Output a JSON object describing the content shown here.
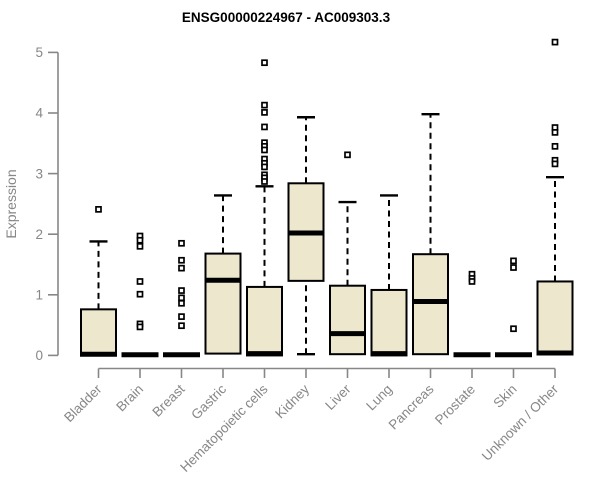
{
  "chart_data": {
    "type": "boxplot",
    "title": "ENSG00000224967 - AC009303.3",
    "ylabel": "Expression",
    "xlabel": "",
    "ylim": [
      0,
      5
    ],
    "yticks": [
      0,
      1,
      2,
      3,
      4,
      5
    ],
    "grid": false,
    "legend": "none",
    "categories": [
      "Bladder",
      "Brain",
      "Breast",
      "Gastric",
      "Hematopoietic cells",
      "Kidney",
      "Liver",
      "Lung",
      "Pancreas",
      "Prostate",
      "Skin",
      "Unknown / Other"
    ],
    "series": [
      {
        "name": "Bladder",
        "q1": 0,
        "median": 0.02,
        "q3": 0.76,
        "whisker_low": 0,
        "whisker_high": 1.88,
        "outliers": [
          2.41
        ]
      },
      {
        "name": "Brain",
        "q1": 0,
        "median": 0.01,
        "q3": 0.02,
        "whisker_low": 0,
        "whisker_high": 0.02,
        "outliers": [
          1.97,
          1.9,
          1.8,
          1.22,
          1.01,
          0.52,
          0.47
        ]
      },
      {
        "name": "Breast",
        "q1": 0,
        "median": 0.01,
        "q3": 0.02,
        "whisker_low": 0,
        "whisker_high": 0.02,
        "outliers": [
          1.85,
          1.57,
          1.44,
          1.07,
          0.95,
          0.86,
          0.64,
          0.49
        ]
      },
      {
        "name": "Gastric",
        "q1": 0.03,
        "median": 1.24,
        "q3": 1.68,
        "whisker_low": 0.03,
        "whisker_high": 2.64,
        "outliers": []
      },
      {
        "name": "Hematopoietic cells",
        "q1": 0,
        "median": 0.03,
        "q3": 1.13,
        "whisker_low": 0,
        "whisker_high": 2.79,
        "outliers": [
          4.83,
          4.13,
          4.01,
          3.77,
          3.51,
          3.45,
          3.39,
          3.24,
          3.17,
          3.11,
          2.98,
          2.93,
          2.87
        ]
      },
      {
        "name": "Kidney",
        "q1": 1.23,
        "median": 2.02,
        "q3": 2.84,
        "whisker_low": 0.02,
        "whisker_high": 3.93,
        "outliers": []
      },
      {
        "name": "Liver",
        "q1": 0.02,
        "median": 0.36,
        "q3": 1.15,
        "whisker_low": 0.02,
        "whisker_high": 2.53,
        "outliers": [
          3.31
        ]
      },
      {
        "name": "Lung",
        "q1": 0,
        "median": 0.03,
        "q3": 1.08,
        "whisker_low": 0,
        "whisker_high": 2.64,
        "outliers": []
      },
      {
        "name": "Pancreas",
        "q1": 0.02,
        "median": 0.89,
        "q3": 1.67,
        "whisker_low": 0.02,
        "whisker_high": 3.98,
        "outliers": []
      },
      {
        "name": "Prostate",
        "q1": 0,
        "median": 0.01,
        "q3": 0.02,
        "whisker_low": 0,
        "whisker_high": 0.02,
        "outliers": [
          1.34,
          1.27,
          1.22
        ]
      },
      {
        "name": "Skin",
        "q1": 0,
        "median": 0.01,
        "q3": 0.02,
        "whisker_low": 0,
        "whisker_high": 0.02,
        "outliers": [
          1.56,
          1.45,
          0.44
        ]
      },
      {
        "name": "Unknown / Other",
        "q1": 0.02,
        "median": 0.04,
        "q3": 1.22,
        "whisker_low": 0.02,
        "whisker_high": 2.94,
        "outliers": [
          5.17,
          3.76,
          3.68,
          3.45,
          3.22,
          3.16
        ]
      }
    ],
    "style": {
      "background": "#ffffff",
      "box_fill": "#EDE7CE",
      "box_stroke": "#000000",
      "median_color": "#000000",
      "outlier_fill": "#ffffff",
      "whisker_style": "dashed",
      "outlier_marker": "open-square",
      "axis_color": "#878787",
      "tick_label_color": "#878787",
      "title_color": "#000000"
    }
  }
}
